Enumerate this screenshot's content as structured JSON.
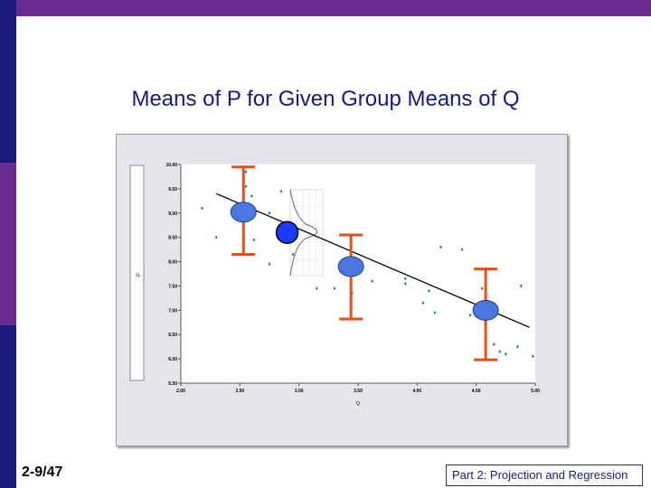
{
  "slide": {
    "title": "Means of P for Given Group Means of Q",
    "slide_number": "2-9/47",
    "footer": "Part 2: Projection and Regression"
  },
  "colors": {
    "accent_purple": "#6b2c91",
    "navy": "#1a1a7a",
    "mean_marker": "#4a78e0",
    "mean_marker_highlight": "#1a3cff",
    "error_bar": "#e05020",
    "scatter": "#2a8a5a"
  },
  "chart_data": {
    "type": "scatter",
    "title": "",
    "xlabel": "Q",
    "ylabel": "P",
    "xlim": [
      2.0,
      5.0
    ],
    "ylim": [
      5.5,
      10.0
    ],
    "x_ticks": [
      "2.00",
      "2.50",
      "3.00",
      "3.50",
      "4.00",
      "4.50",
      "5.00"
    ],
    "y_ticks": [
      "10.00",
      "9.50",
      "9.00",
      "8.50",
      "8.00",
      "7.50",
      "7.00",
      "6.50",
      "6.00",
      "5.50"
    ],
    "points": [
      [
        2.18,
        9.1
      ],
      [
        2.3,
        8.5
      ],
      [
        2.55,
        9.55
      ],
      [
        2.55,
        9.85
      ],
      [
        2.6,
        9.35
      ],
      [
        2.62,
        8.45
      ],
      [
        2.85,
        9.45
      ],
      [
        2.75,
        9.0
      ],
      [
        2.85,
        8.5
      ],
      [
        2.75,
        7.95
      ],
      [
        2.95,
        8.15
      ],
      [
        3.15,
        7.45
      ],
      [
        3.3,
        7.45
      ],
      [
        3.45,
        7.35
      ],
      [
        3.62,
        7.6
      ],
      [
        3.9,
        7.55
      ],
      [
        3.9,
        7.65
      ],
      [
        4.05,
        7.15
      ],
      [
        4.1,
        7.4
      ],
      [
        4.15,
        6.95
      ],
      [
        4.2,
        8.3
      ],
      [
        4.38,
        8.25
      ],
      [
        4.45,
        6.9
      ],
      [
        4.5,
        7.1
      ],
      [
        4.55,
        7.45
      ],
      [
        4.58,
        7.25
      ],
      [
        4.65,
        6.3
      ],
      [
        4.75,
        6.1
      ],
      [
        4.7,
        6.15
      ],
      [
        4.85,
        6.25
      ],
      [
        4.88,
        7.5
      ],
      [
        4.98,
        6.05
      ]
    ],
    "group_means": [
      {
        "x": 2.53,
        "y": 9.02,
        "err_low": 8.15,
        "err_high": 9.95
      },
      {
        "x": 3.44,
        "y": 7.9,
        "err_low": 6.82,
        "err_high": 8.55
      },
      {
        "x": 4.58,
        "y": 7.0,
        "err_low": 5.98,
        "err_high": 7.85
      }
    ],
    "highlight_mean": {
      "x": 2.9,
      "y": 8.6
    },
    "regression_line": {
      "x": [
        2.3,
        4.95
      ],
      "y": [
        9.4,
        6.65
      ]
    },
    "grid": false
  }
}
